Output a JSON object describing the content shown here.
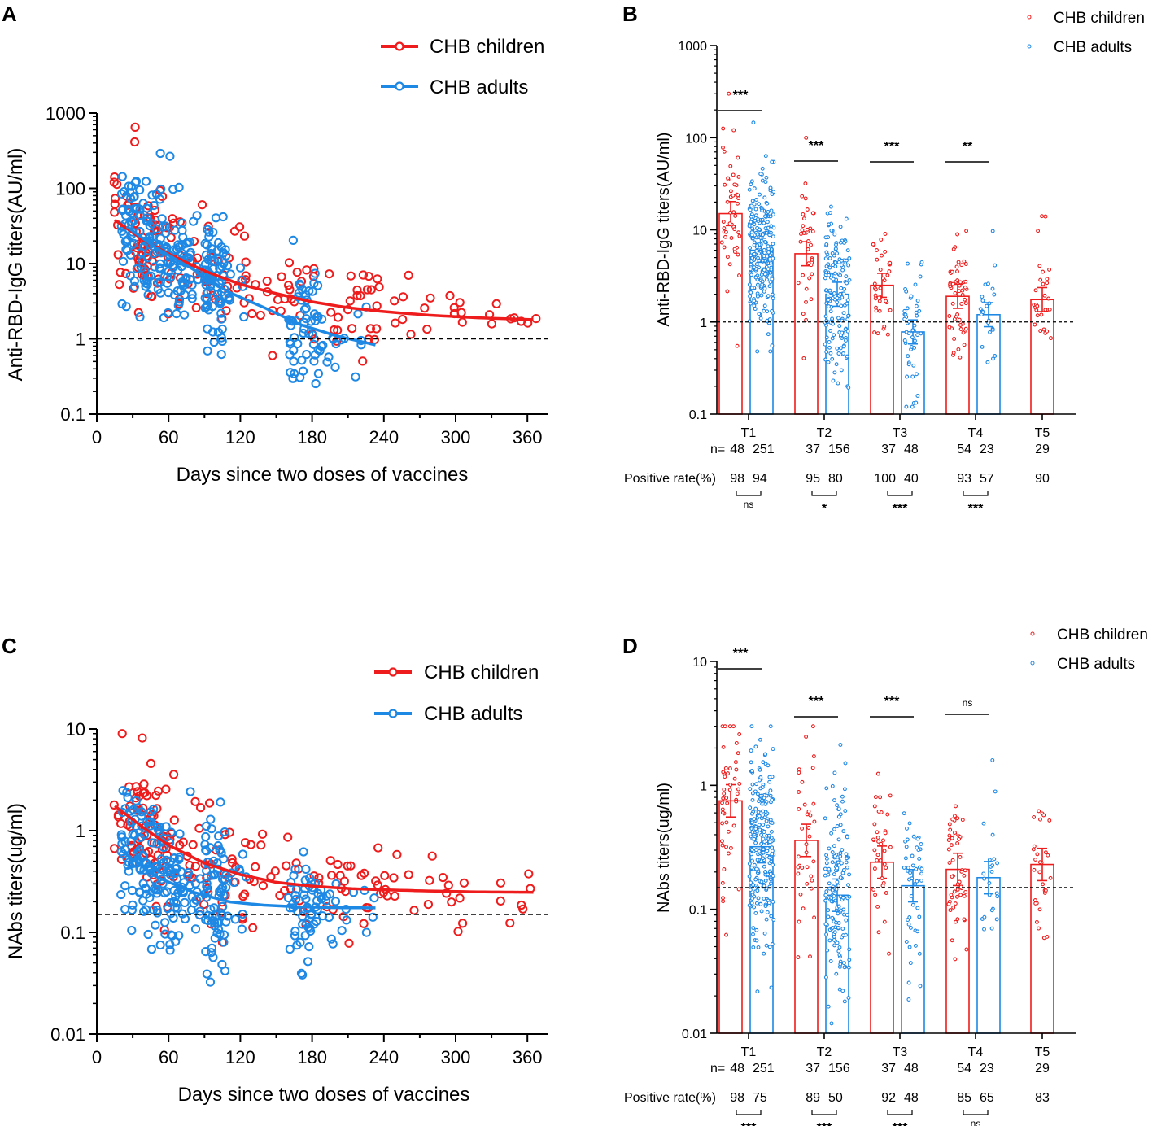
{
  "colors": {
    "children": "#ee1c1c",
    "adults": "#1e88e5",
    "axis": "#000000"
  },
  "chart_data": [
    {
      "panel": "A",
      "type": "scatter",
      "ylabel": "Anti-RBD-IgG titers(AU/ml)",
      "xlabel": "Days since two doses of vaccines",
      "yscale": "log",
      "ylim": [
        0.1,
        1000
      ],
      "xlim": [
        0,
        375
      ],
      "xticks": [
        "0",
        "60",
        "120",
        "180",
        "240",
        "300",
        "360"
      ],
      "yticks": [
        "0.1",
        "1",
        "10",
        "100",
        "1000"
      ],
      "cutoff": 1,
      "legend": [
        "CHB children",
        "CHB adults"
      ],
      "series": [
        {
          "name": "CHB children",
          "fit": [
            [
              15,
              38
            ],
            [
              40,
              20
            ],
            [
              60,
              13.5
            ],
            [
              90,
              8
            ],
            [
              120,
              5.3
            ],
            [
              150,
              4
            ],
            [
              180,
              3.1
            ],
            [
              210,
              2.6
            ],
            [
              240,
              2.3
            ],
            [
              280,
              2.05
            ],
            [
              320,
              1.9
            ],
            [
              365,
              1.8
            ]
          ]
        },
        {
          "name": "CHB adults",
          "fit": [
            [
              25,
              31
            ],
            [
              50,
              16
            ],
            [
              80,
              8.5
            ],
            [
              110,
              4.2
            ],
            [
              140,
              2.6
            ],
            [
              170,
              1.55
            ],
            [
              200,
              1.1
            ],
            [
              233,
              0.83
            ]
          ]
        }
      ]
    },
    {
      "panel": "B",
      "type": "bar",
      "ylabel": "Anti-RBD-IgG titers(AU/ml)",
      "yscale": "log",
      "ylim": [
        0.1,
        1000
      ],
      "yticks": [
        "0.1",
        "1",
        "10",
        "100",
        "1000"
      ],
      "cutoff": 1,
      "legend": [
        "CHB children",
        "CHB adults"
      ],
      "categories": [
        "T1",
        "T2",
        "T3",
        "T4",
        "T5"
      ],
      "series": [
        {
          "name": "CHB children",
          "values": [
            15,
            5.5,
            2.5,
            1.9,
            1.75
          ],
          "n": [
            "48",
            "37",
            "37",
            "54",
            "29"
          ],
          "positive_rate": [
            "98",
            "95",
            "100",
            "93",
            "90"
          ]
        },
        {
          "name": "CHB adults",
          "values": [
            6,
            2,
            0.78,
            1.2,
            null
          ],
          "n": [
            "251",
            "156",
            "48",
            "23",
            ""
          ],
          "positive_rate": [
            "94",
            "80",
            "40",
            "57",
            ""
          ]
        }
      ],
      "sig_top": [
        "***",
        "***",
        "***",
        "**",
        ""
      ],
      "sig_positive": [
        "ns",
        "*",
        "***",
        "***",
        ""
      ],
      "n_label": "n=",
      "positive_label": "Positive rate(%)"
    },
    {
      "panel": "C",
      "type": "scatter",
      "ylabel": "NAbs titers(ug/ml)",
      "xlabel": "Days since two doses of vaccines",
      "yscale": "log",
      "ylim": [
        0.01,
        10
      ],
      "xlim": [
        0,
        375
      ],
      "xticks": [
        "0",
        "60",
        "120",
        "180",
        "240",
        "300",
        "360"
      ],
      "yticks": [
        "0.01",
        "0.1",
        "1",
        "10"
      ],
      "cutoff": 0.15,
      "legend": [
        "CHB children",
        "CHB adults"
      ],
      "series": [
        {
          "name": "CHB children",
          "fit": [
            [
              15,
              1.75
            ],
            [
              40,
              1.05
            ],
            [
              60,
              0.72
            ],
            [
              90,
              0.48
            ],
            [
              120,
              0.37
            ],
            [
              150,
              0.31
            ],
            [
              180,
              0.285
            ],
            [
              210,
              0.27
            ],
            [
              240,
              0.262
            ],
            [
              280,
              0.255
            ],
            [
              320,
              0.25
            ],
            [
              365,
              0.248
            ]
          ]
        },
        {
          "name": "CHB adults",
          "fit": [
            [
              25,
              0.58
            ],
            [
              50,
              0.35
            ],
            [
              80,
              0.25
            ],
            [
              110,
              0.2
            ],
            [
              140,
              0.185
            ],
            [
              170,
              0.178
            ],
            [
              200,
              0.175
            ],
            [
              233,
              0.174
            ]
          ]
        }
      ]
    },
    {
      "panel": "D",
      "type": "bar",
      "ylabel": "NAbs titers(ug/ml)",
      "yscale": "log",
      "ylim": [
        0.01,
        10
      ],
      "yticks": [
        "0.01",
        "0.1",
        "1",
        "10"
      ],
      "cutoff": 0.15,
      "legend": [
        "CHB children",
        "CHB adults"
      ],
      "categories": [
        "T1",
        "T2",
        "T3",
        "T4",
        "T5"
      ],
      "series": [
        {
          "name": "CHB children",
          "values": [
            0.75,
            0.36,
            0.24,
            0.21,
            0.23
          ],
          "n": [
            "48",
            "37",
            "37",
            "54",
            "29"
          ],
          "positive_rate": [
            "98",
            "89",
            "92",
            "85",
            "83"
          ]
        },
        {
          "name": "CHB adults",
          "values": [
            0.32,
            0.13,
            0.155,
            0.18,
            null
          ],
          "n": [
            "251",
            "156",
            "48",
            "23",
            ""
          ],
          "positive_rate": [
            "75",
            "50",
            "48",
            "65",
            ""
          ]
        }
      ],
      "sig_top": [
        "***",
        "***",
        "***",
        "ns",
        ""
      ],
      "sig_positive": [
        "***",
        "***",
        "***",
        "ns",
        ""
      ],
      "n_label": "n=",
      "positive_label": "Positive rate(%)"
    }
  ]
}
